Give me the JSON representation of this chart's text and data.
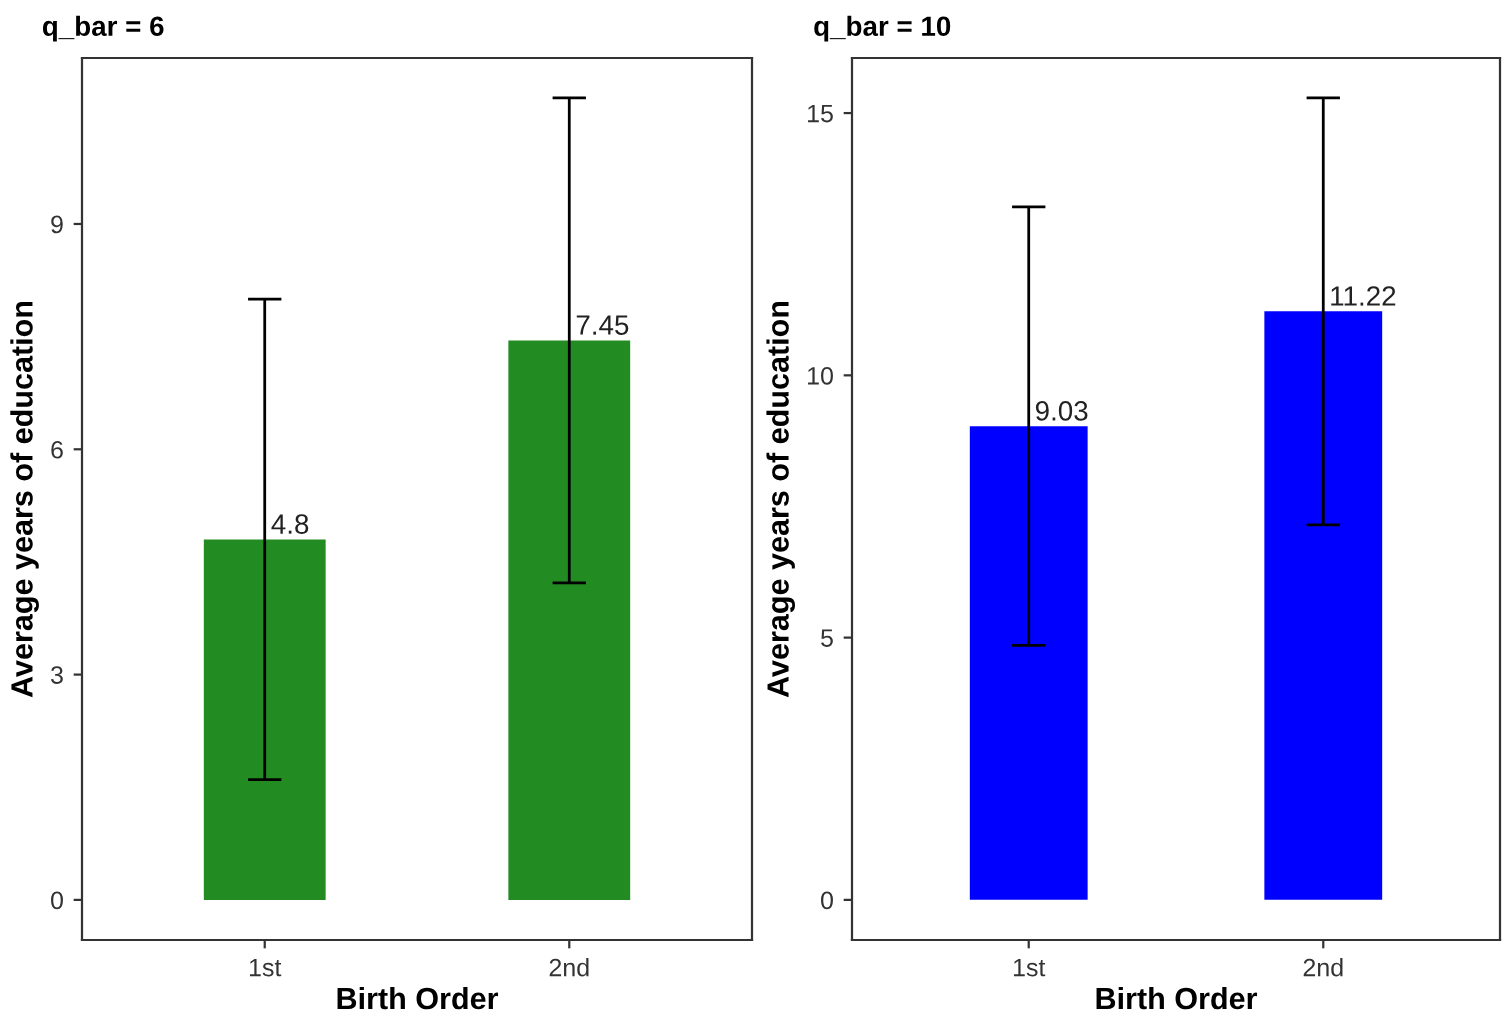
{
  "chart_data": [
    {
      "type": "bar",
      "title": "q_bar = 6",
      "xlabel": "Birth Order",
      "ylabel": "Average years of education",
      "categories": [
        "1st",
        "2nd"
      ],
      "values": [
        4.8,
        7.45
      ],
      "errors": [
        3.2,
        3.23
      ],
      "color": "#228b22",
      "ylim": [
        -0.534,
        11.21
      ],
      "yticks": [
        0,
        3,
        6,
        9
      ],
      "data_labels": true,
      "grid": false
    },
    {
      "type": "bar",
      "title": "q_bar = 10",
      "xlabel": "Birth Order",
      "ylabel": "Average years of education",
      "categories": [
        "1st",
        "2nd"
      ],
      "values": [
        9.03,
        11.22
      ],
      "errors": [
        4.18,
        4.07
      ],
      "color": "#0000ff",
      "ylim": [
        -0.765,
        16.05
      ],
      "yticks": [
        0,
        5,
        10,
        15
      ],
      "data_labels": true,
      "grid": false
    }
  ]
}
